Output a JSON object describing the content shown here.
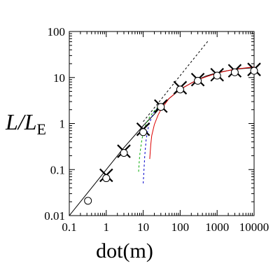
{
  "chart_data": {
    "type": "scatter",
    "title": "",
    "x_label_main": "dot",
    "x_label_unit": "(m)",
    "y_label_main": "L/L",
    "y_label_sub": "E",
    "xscale": "log",
    "yscale": "log",
    "xlim": [
      0.1,
      10000
    ],
    "ylim": [
      0.01,
      100
    ],
    "x_ticks": [
      0.1,
      1,
      10,
      100,
      1000,
      10000
    ],
    "x_tick_labels": [
      "0.1",
      "1",
      "10",
      "100",
      "1000",
      "10000"
    ],
    "y_ticks": [
      0.01,
      0.1,
      1,
      10,
      100
    ],
    "y_tick_labels": [
      "0.01",
      "0.1",
      "1",
      "10",
      "100"
    ],
    "grid": false,
    "legend": "none",
    "series": [
      {
        "marker": "x",
        "color": "#000000",
        "x": [
          1,
          3,
          10,
          30,
          100,
          300,
          1000,
          3000,
          10000
        ],
        "y": [
          0.075,
          0.25,
          0.75,
          2.4,
          6,
          9,
          11.5,
          14,
          15
        ]
      },
      {
        "marker": "circle",
        "color": "#000000",
        "x": [
          0.32,
          1,
          3,
          10,
          30,
          100,
          300,
          1000,
          3000,
          10000
        ],
        "y": [
          0.021,
          0.065,
          0.23,
          0.65,
          2.3,
          5.5,
          8.5,
          11,
          13,
          14
        ]
      },
      {
        "style": "solid",
        "color": "#000000",
        "x": [
          0.1,
          1,
          3,
          10,
          20,
          30,
          50,
          100,
          200,
          300,
          500,
          1000,
          2000,
          3000,
          5000,
          10000
        ],
        "y": [
          0.01,
          0.1,
          0.3,
          0.9,
          1.6,
          2.3,
          3.5,
          5.5,
          7.6,
          9,
          10.8,
          12.7,
          14.2,
          15,
          15.7,
          16.3
        ]
      },
      {
        "style": "dashed",
        "color": "#000000",
        "x": [
          10,
          20,
          30,
          50,
          100,
          200,
          300,
          600
        ],
        "y": [
          1.1,
          2.2,
          3.3,
          5.5,
          11,
          22,
          33,
          66
        ]
      },
      {
        "style": "solid",
        "color": "#dd0000",
        "x": [
          15,
          16,
          17,
          20,
          25,
          30,
          50,
          100,
          300,
          1000,
          3000,
          10000
        ],
        "y": [
          0.17,
          0.35,
          0.55,
          0.95,
          1.5,
          2,
          3.5,
          5.6,
          9,
          12.5,
          15.2,
          17
        ]
      },
      {
        "style": "dashed",
        "color": "#0000cc",
        "x": [
          10,
          11,
          12,
          14,
          17,
          20,
          30
        ],
        "y": [
          0.05,
          0.2,
          0.45,
          0.9,
          1.4,
          1.8,
          2.6
        ]
      },
      {
        "style": "dashed",
        "color": "#00aa00",
        "x": [
          7.5,
          8,
          9,
          10,
          12,
          15,
          20,
          30
        ],
        "y": [
          0.09,
          0.2,
          0.4,
          0.65,
          1,
          1.4,
          1.9,
          2.6
        ]
      }
    ]
  }
}
